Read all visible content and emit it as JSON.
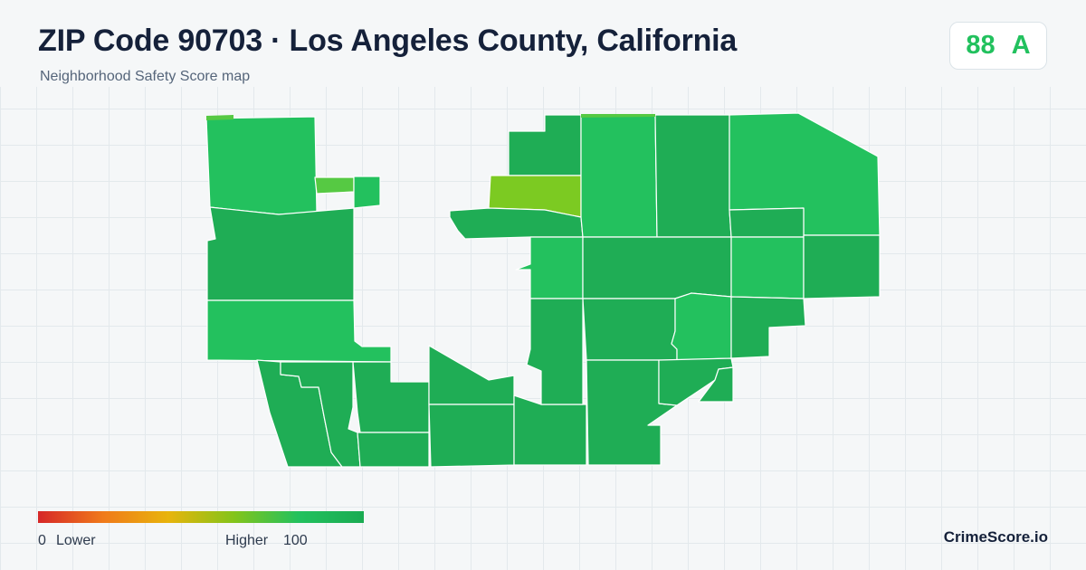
{
  "header": {
    "title": "ZIP Code 90703 · Los Angeles County, California",
    "subtitle": "Neighborhood Safety Score map"
  },
  "score": {
    "value": "88",
    "grade": "A",
    "color": "#22c15e"
  },
  "legend": {
    "min_value": "0",
    "low_label": "Lower",
    "high_label": "Higher",
    "max_value": "100",
    "gradient_colors": [
      "#d62728",
      "#f07a1a",
      "#e8b40c",
      "#84c41a",
      "#22c15e",
      "#1aab52"
    ]
  },
  "brand": "CrimeScore.io",
  "map": {
    "palette": {
      "darker_green": "#1fad55",
      "bright_green": "#23c15e",
      "light_green": "#56c943",
      "yellow_green": "#7cca22",
      "border": "#ffffff"
    }
  }
}
